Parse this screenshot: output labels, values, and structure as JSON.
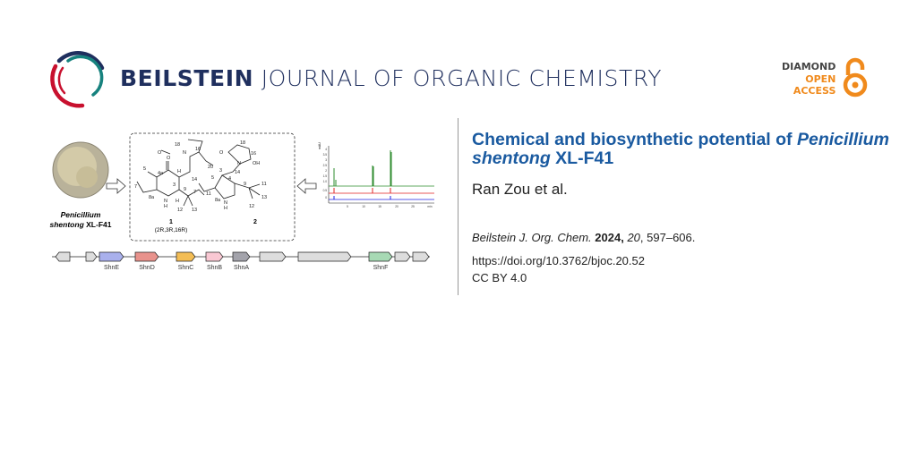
{
  "header": {
    "journal_bold": "BEILSTEIN",
    "journal_rest": "JOURNAL OF ORGANIC CHEMISTRY",
    "badge": {
      "line1": "DIAMOND",
      "line2": "OPEN",
      "line3": "ACCESS"
    },
    "colors": {
      "navy": "#1f2f5e",
      "crimson": "#c8102e",
      "teal": "#17827e",
      "orange": "#f08a1c"
    }
  },
  "article": {
    "title_part1": "Chemical and biosynthetic potential of ",
    "title_italic": "Penicillium shentong",
    "title_part2": " XL-F41",
    "authors": "Ran Zou et al.",
    "journal_abbrev": "Beilstein J. Org. Chem.",
    "year": "2024,",
    "volume": "20",
    "pages": ", 597–606.",
    "doi": "https://doi.org/10.3762/bjoc.20.52",
    "license": "CC BY 4.0",
    "title_color": "#1a5aa0"
  },
  "graphical_abstract": {
    "organism_italic": "Penicillium",
    "organism_line2_italic": "shentong",
    "organism_line2_rest": " XL-F41",
    "compound1": "1",
    "compound1_config": "(2R,3R,16R)",
    "compound2": "2",
    "atom_labels_1": [
      "18",
      "16",
      "20",
      "O",
      "N",
      "O",
      "5",
      "4a",
      "H",
      "3",
      "14",
      "7",
      "8a",
      "N",
      "H",
      "H",
      "9",
      "11",
      "12",
      "13"
    ],
    "atom_labels_2": [
      "18",
      "O",
      "16",
      "N",
      "OH",
      "3",
      "14",
      "5",
      "4",
      "9",
      "11",
      "7",
      "8a",
      "N",
      "H",
      "13",
      "12"
    ],
    "chromatogram": {
      "ylabel": "mAU",
      "yticks": [
        "4",
        "3.5",
        "3",
        "2.5",
        "2",
        "1.5",
        "1.0",
        "0.5",
        "0"
      ],
      "xticks": [
        "5",
        "10",
        "15",
        "20",
        "25",
        "min"
      ],
      "series_colors": [
        "#2e8b2e",
        "#e02020",
        "#2020e0"
      ]
    },
    "genes": [
      {
        "label": "",
        "color": "#dddddd"
      },
      {
        "label": "",
        "color": "#dddddd"
      },
      {
        "label": "ShnE",
        "color": "#a9b0ec"
      },
      {
        "label": "ShnD",
        "color": "#e8928c"
      },
      {
        "label": "ShnC",
        "color": "#f3bd55"
      },
      {
        "label": "ShnB",
        "color": "#f9c8d3"
      },
      {
        "label": "ShnA",
        "color": "#a3a3ab"
      },
      {
        "label": "",
        "color": "#dddddd"
      },
      {
        "label": "",
        "color": "#dddddd"
      },
      {
        "label": "ShnF",
        "color": "#a7d9b4"
      },
      {
        "label": "",
        "color": "#dddddd"
      },
      {
        "label": "",
        "color": "#dddddd"
      }
    ]
  }
}
